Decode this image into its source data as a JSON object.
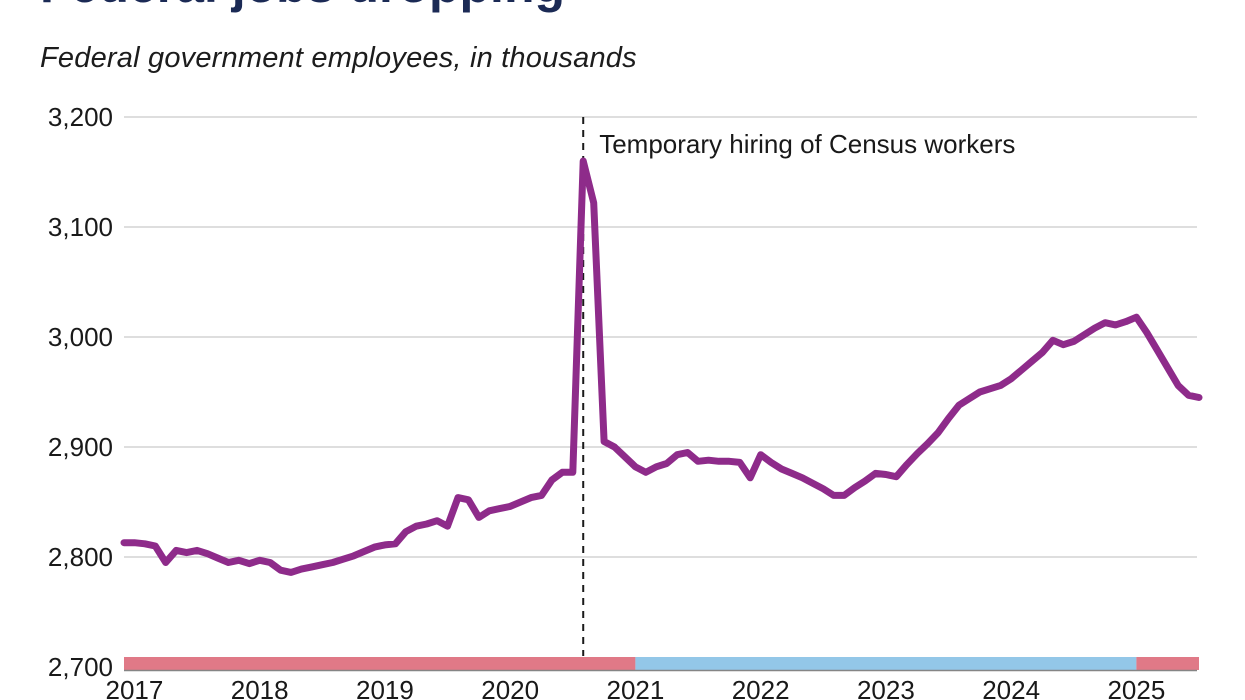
{
  "header": {
    "title": "Federal jobs dropping",
    "subtitle": "Federal government employees, in thousands"
  },
  "chart_data": {
    "type": "line",
    "title": "Federal jobs dropping",
    "subtitle": "Federal government employees, in thousands",
    "frequency": "monthly",
    "start_month": "2016-12",
    "values": [
      2813,
      2813,
      2812,
      2810,
      2795,
      2806,
      2804,
      2806,
      2803,
      2799,
      2795,
      2797,
      2794,
      2797,
      2795,
      2788,
      2786,
      2789,
      2791,
      2793,
      2795,
      2798,
      2801,
      2805,
      2809,
      2811,
      2812,
      2823,
      2828,
      2830,
      2833,
      2828,
      2854,
      2852,
      2836,
      2842,
      2844,
      2846,
      2850,
      2854,
      2856,
      2870,
      2877,
      2877,
      3160,
      3122,
      2905,
      2900,
      2891,
      2882,
      2877,
      2882,
      2885,
      2893,
      2895,
      2887,
      2888,
      2887,
      2887,
      2886,
      2872,
      2893,
      2886,
      2880,
      2876,
      2872,
      2867,
      2862,
      2856,
      2856,
      2863,
      2869,
      2876,
      2875,
      2873,
      2884,
      2894,
      2903,
      2913,
      2926,
      2938,
      2944,
      2950,
      2953,
      2956,
      2962,
      2970,
      2978,
      2986,
      2997,
      2993,
      2996,
      3002,
      3008,
      3013,
      3011,
      3014,
      3018,
      3004,
      2988,
      2972,
      2956,
      2947,
      2945
    ],
    "x_tick_labels": [
      "2017",
      "2018",
      "2019",
      "2020",
      "2021",
      "2022",
      "2023",
      "2024",
      "2025"
    ],
    "x_tick_month_indices": [
      1,
      13,
      25,
      37,
      49,
      61,
      73,
      85,
      97
    ],
    "ylim": [
      2700,
      3200
    ],
    "y_ticks": [
      2700,
      2800,
      2900,
      3000,
      3100,
      3200
    ],
    "y_tick_labels": [
      "2,700",
      "2,800",
      "2,900",
      "3,000",
      "3,100",
      "3,200"
    ],
    "annotation": {
      "text": "Temporary hiring of Census workers",
      "month_index": 44
    },
    "administration_bands": [
      {
        "color": "#e07987",
        "from_index": 0,
        "to_index": 49
      },
      {
        "color": "#93c7e8",
        "from_index": 49,
        "to_index": 97
      },
      {
        "color": "#e07987",
        "from_index": 97,
        "to_index": 103
      }
    ],
    "legend": "none",
    "grid": "horizontal",
    "colors": {
      "line": "#8e2b8a",
      "grid": "#c9c9c9",
      "axis": "#858585",
      "annotation_line": "#1a1a1a",
      "title": "#1b2a55",
      "text": "#191919",
      "band_red": "#e07987",
      "band_blue": "#93c7e8"
    }
  }
}
